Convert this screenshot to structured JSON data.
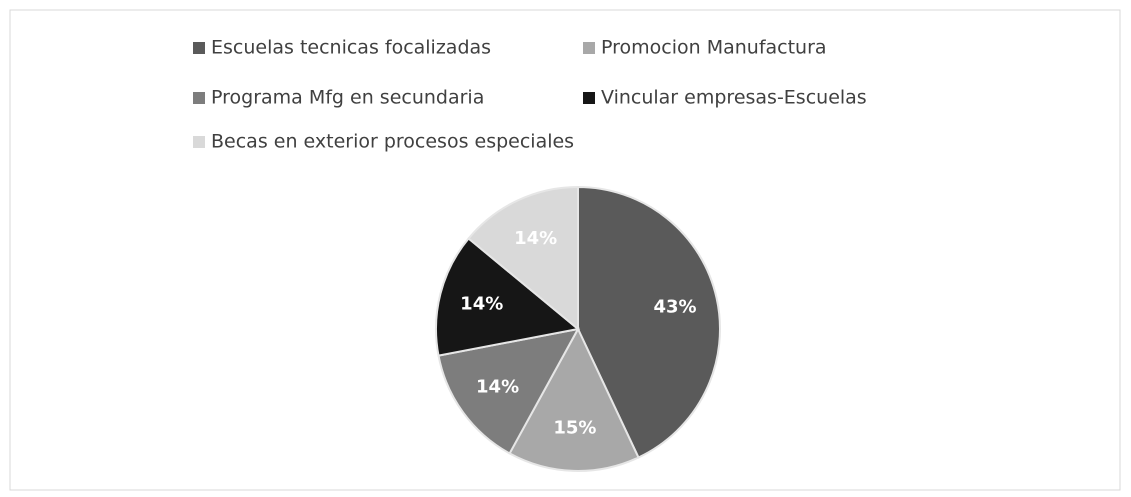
{
  "chart_data": {
    "type": "pie",
    "categories": [
      "Escuelas tecnicas focalizadas",
      "Promocion Manufactura",
      "Programa Mfg en secundaria",
      "Vincular empresas-Escuelas",
      "Becas en exterior procesos especiales"
    ],
    "values": [
      43,
      15,
      14,
      14,
      14
    ],
    "value_labels": [
      "43%",
      "15%",
      "14%",
      "14%",
      "14%"
    ],
    "colors": [
      "#5a5a5a",
      "#a8a8a8",
      "#7d7d7d",
      "#161616",
      "#d9d9d9"
    ],
    "legend": "top"
  }
}
